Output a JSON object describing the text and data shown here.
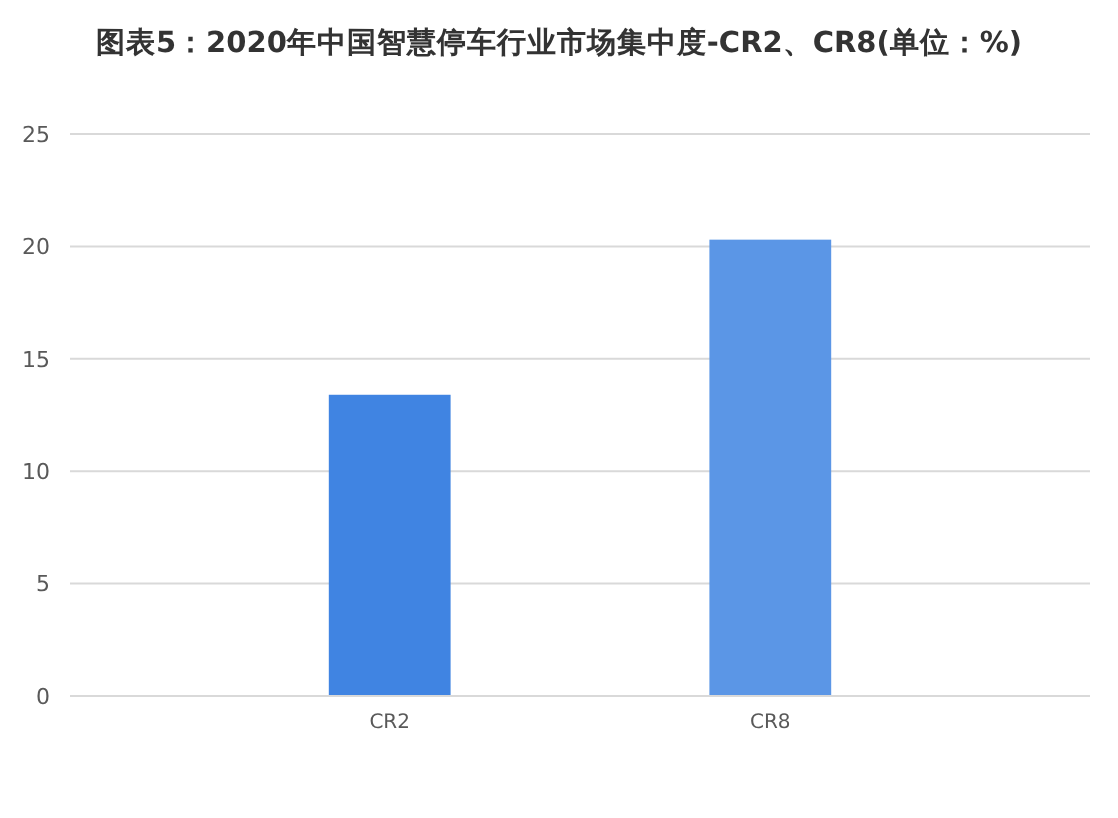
{
  "chart_data": {
    "type": "bar",
    "title": "图表5：2020年中国智慧停车行业市场集中度-CR2、CR8(单位：%)",
    "categories": [
      "CR2",
      "CR8"
    ],
    "values": [
      13.4,
      20.3
    ],
    "colors": [
      "#4084e2",
      "#5b96e6"
    ],
    "ylim": [
      0,
      25
    ],
    "yticks": [
      0,
      5,
      10,
      15,
      20,
      25
    ],
    "grid": "y"
  }
}
